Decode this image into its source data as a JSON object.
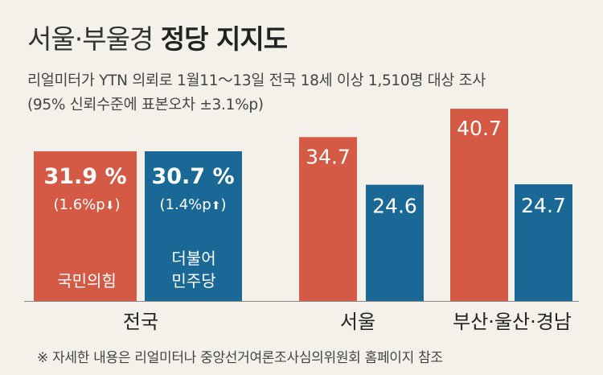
{
  "title_part1": "서울·부울경",
  "title_part2": "정당 지지도",
  "subtitle_line1": "리얼미터가 YTN 의뢰로 1월11～13일 전국 18세 이상 1,510명 대상 조사",
  "subtitle_line2": "(95% 신뢰수준에 표본오차 ±3.1%p)",
  "footnote": "※ 자세한 내용은 리얼미터나 중앙선거여론조사심의위원회 홈페이지 참조",
  "colors": {
    "ppp": "#d45a46",
    "dem": "#1a6896",
    "background": "#f4f1ea"
  },
  "chart_data": {
    "type": "bar",
    "categories": [
      "전국",
      "서울",
      "부산·울산·경남"
    ],
    "series": [
      {
        "name": "국민의힘",
        "values": [
          31.9,
          34.7,
          40.7
        ]
      },
      {
        "name": "더불어 민주당",
        "values": [
          30.7,
          24.6,
          24.7
        ]
      }
    ],
    "value_labels": [
      "31.9 %",
      "30.7 %",
      "34.7",
      "24.6",
      "40.7",
      "24.7"
    ],
    "changes": [
      {
        "text": "(1.6%p",
        "direction": "down"
      },
      {
        "text": "(1.4%p",
        "direction": "up"
      }
    ],
    "inbar_labels": [
      "국민의힘",
      "더불어",
      "민주당"
    ],
    "national_panel_uniform": true
  }
}
